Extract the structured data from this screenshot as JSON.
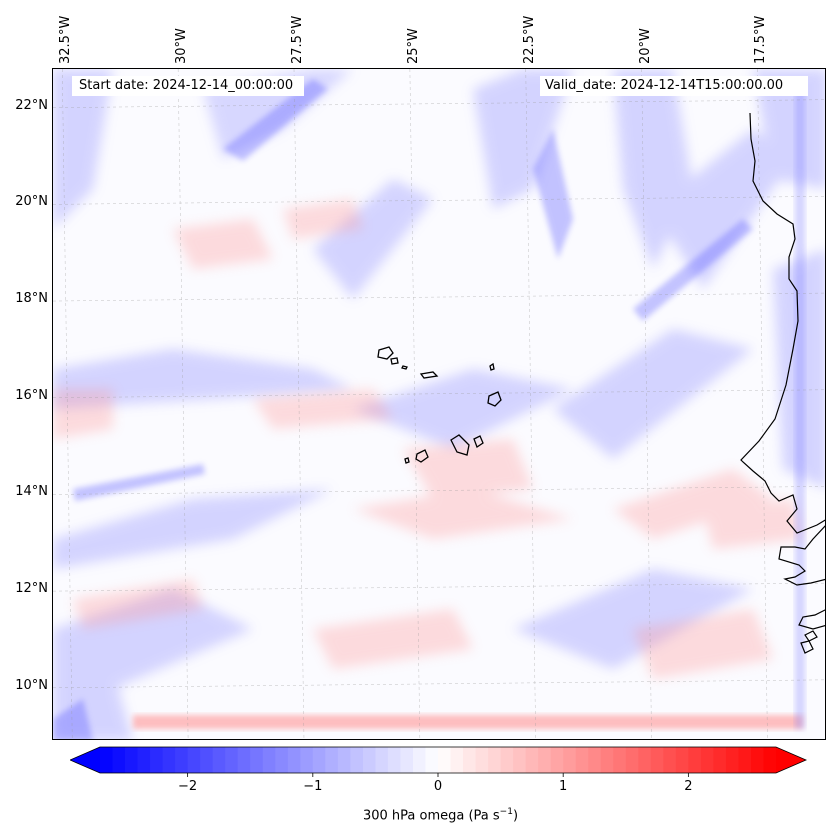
{
  "map": {
    "projection": "lat-lon",
    "extent": {
      "lon_min": -32.7,
      "lon_max": -16.0,
      "lat_min": 8.9,
      "lat_max": 22.8
    },
    "lon_ticks": [
      {
        "value": -32.5,
        "label": "32.5°W"
      },
      {
        "value": -30.0,
        "label": "30°W"
      },
      {
        "value": -27.5,
        "label": "27.5°W"
      },
      {
        "value": -25.0,
        "label": "25°W"
      },
      {
        "value": -22.5,
        "label": "22.5°W"
      },
      {
        "value": -20.0,
        "label": "20°W"
      },
      {
        "value": -17.5,
        "label": "17.5°W"
      }
    ],
    "lat_ticks": [
      {
        "value": 22,
        "label": "22°N"
      },
      {
        "value": 20,
        "label": "20°N"
      },
      {
        "value": 18,
        "label": "18°N"
      },
      {
        "value": 16,
        "label": "16°N"
      },
      {
        "value": 14,
        "label": "14°N"
      },
      {
        "value": 12,
        "label": "12°N"
      },
      {
        "value": 10,
        "label": "10°N"
      }
    ],
    "gridlines": true,
    "start_date": "Start date: 2024-12-14_00:00:00",
    "valid_date": "Valid_date: 2024-12-14T15:00:00.00",
    "features": [
      "Cape Verde islands",
      "West African coastline"
    ],
    "field_colors": {
      "negative": "#0000ff",
      "zero": "#ffffff",
      "positive": "#ff0000"
    }
  },
  "colorbar": {
    "min": -2.7,
    "max": 2.7,
    "ticks": [
      {
        "value": -2,
        "label": "−2"
      },
      {
        "value": -1,
        "label": "−1"
      },
      {
        "value": 0,
        "label": "0"
      },
      {
        "value": 1,
        "label": "1"
      },
      {
        "value": 2,
        "label": "2"
      }
    ],
    "label_text": "300 hPa omega (Pa s",
    "label_sup": "−1",
    "label_close": ")",
    "extend": "both"
  }
}
